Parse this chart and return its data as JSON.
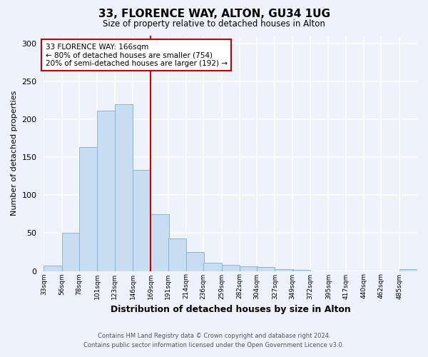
{
  "title": "33, FLORENCE WAY, ALTON, GU34 1UG",
  "subtitle": "Size of property relative to detached houses in Alton",
  "xlabel": "Distribution of detached houses by size in Alton",
  "ylabel": "Number of detached properties",
  "bar_color": "#c8ddf2",
  "bar_edge_color": "#7baed6",
  "bin_labels": [
    "33sqm",
    "56sqm",
    "78sqm",
    "101sqm",
    "123sqm",
    "146sqm",
    "169sqm",
    "191sqm",
    "214sqm",
    "236sqm",
    "259sqm",
    "282sqm",
    "304sqm",
    "327sqm",
    "349sqm",
    "372sqm",
    "395sqm",
    "417sqm",
    "440sqm",
    "462sqm",
    "485sqm"
  ],
  "bin_edges": [
    33,
    56,
    78,
    101,
    123,
    146,
    169,
    191,
    214,
    236,
    259,
    282,
    304,
    327,
    349,
    372,
    395,
    417,
    440,
    462,
    485
  ],
  "bin_width": 23,
  "bar_heights": [
    7,
    50,
    163,
    211,
    220,
    133,
    75,
    43,
    25,
    11,
    8,
    6,
    5,
    2,
    1,
    0,
    0,
    0,
    0,
    0,
    2
  ],
  "vline_x": 169,
  "vline_color": "#cc0000",
  "ylim": [
    0,
    310
  ],
  "yticks": [
    0,
    50,
    100,
    150,
    200,
    250,
    300
  ],
  "annotation_line1": "33 FLORENCE WAY: 166sqm",
  "annotation_line2": "← 80% of detached houses are smaller (754)",
  "annotation_line3": "20% of semi-detached houses are larger (192) →",
  "annotation_box_color": "#ffffff",
  "annotation_box_edge": "#cc0000",
  "footer_line1": "Contains HM Land Registry data © Crown copyright and database right 2024.",
  "footer_line2": "Contains public sector information licensed under the Open Government Licence v3.0.",
  "background_color": "#eef2fa",
  "grid_color": "#ffffff"
}
